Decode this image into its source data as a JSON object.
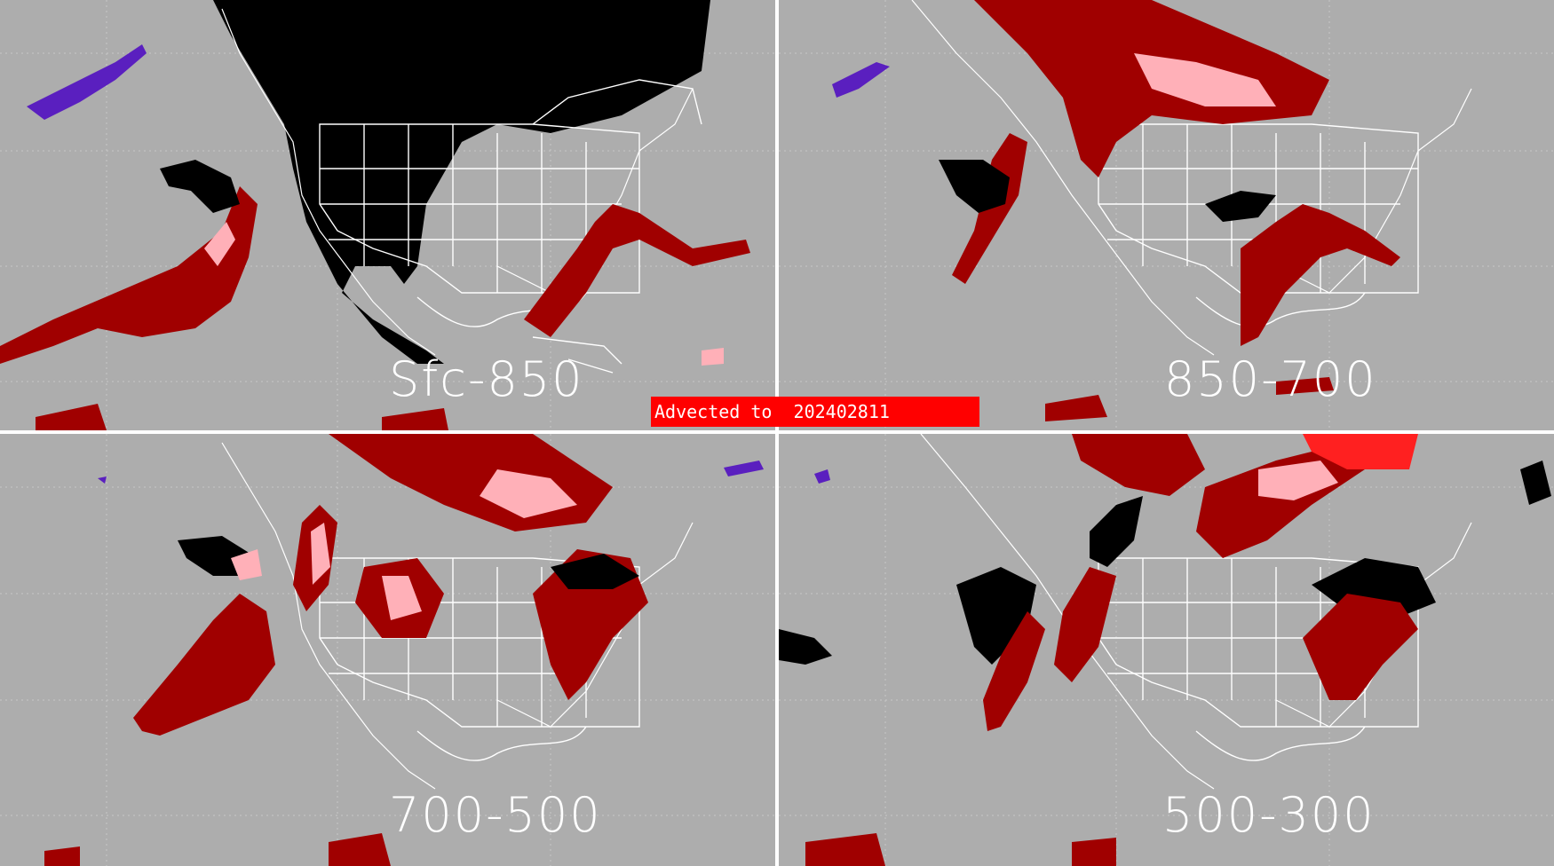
{
  "banner": {
    "prefix": "Advected to",
    "datetime": "202402811"
  },
  "panels": [
    {
      "id": "sfc-850",
      "title": "Sfc-850"
    },
    {
      "id": "850-700",
      "title": "850-700"
    },
    {
      "id": "700-500",
      "title": "700-500"
    },
    {
      "id": "500-300",
      "title": "500-300"
    }
  ],
  "colors": {
    "background": "#adadad",
    "land_mask": "#000000",
    "boundaries": "#ffffff",
    "dark_red": "#a00000",
    "pink": "#ffb0b8",
    "bright_red": "#ff2020",
    "purple": "#5a1fbf",
    "black_field": "#000000"
  }
}
